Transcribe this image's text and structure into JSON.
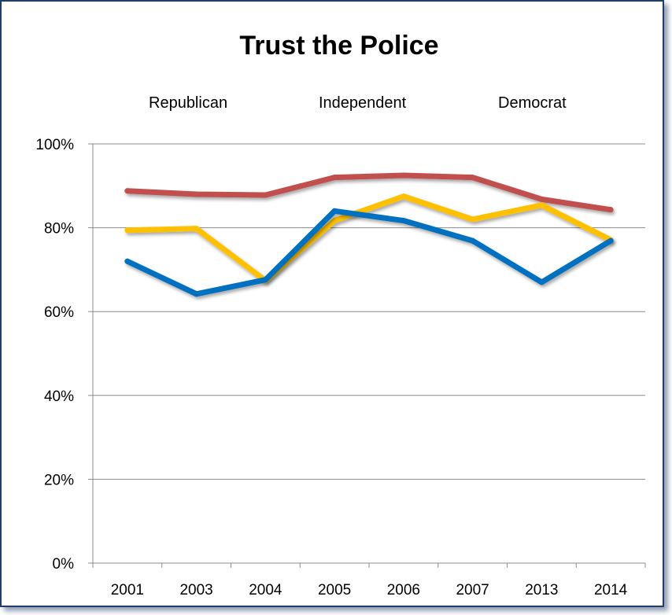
{
  "chart_data": {
    "type": "line",
    "title": "Trust the Police",
    "xlabel": "",
    "ylabel": "",
    "categories": [
      "2001",
      "2003",
      "2004",
      "2005",
      "2006",
      "2007",
      "2013",
      "2014"
    ],
    "ylim": [
      0,
      100
    ],
    "ytick_values": [
      0,
      20,
      40,
      60,
      80,
      100
    ],
    "ytick_labels": [
      "0%",
      "20%",
      "40%",
      "60%",
      "80%",
      "100%"
    ],
    "grid": true,
    "legend_position": "top",
    "series": [
      {
        "name": "Republican",
        "color": "#c0504d",
        "values": [
          88.8,
          88.0,
          87.8,
          92.0,
          92.5,
          92.0,
          86.8,
          84.3
        ]
      },
      {
        "name": "Independent",
        "color": "#ffc000",
        "values": [
          79.4,
          79.8,
          67.4,
          81.7,
          87.5,
          82.0,
          85.4,
          77.1
        ]
      },
      {
        "name": "Democrat",
        "color": "#0070c0",
        "values": [
          72.0,
          64.2,
          67.6,
          84.0,
          81.7,
          76.9,
          67.0,
          76.9
        ]
      }
    ]
  }
}
